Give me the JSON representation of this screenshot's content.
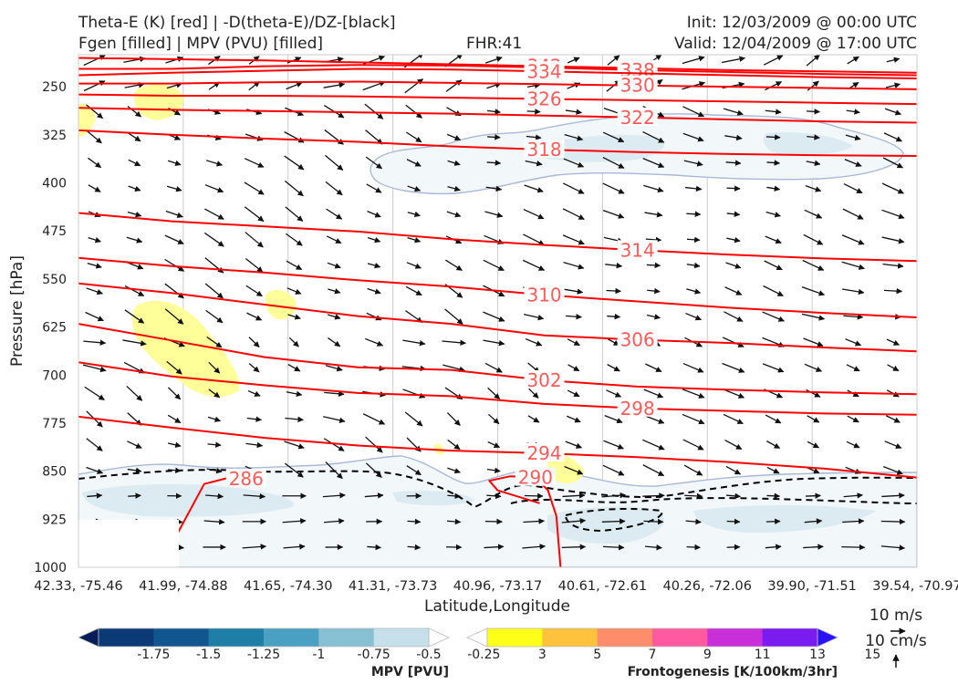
{
  "header": {
    "left_line1": "Theta-E (K) [red] | -D(theta-E)/DZ-[black]",
    "left_line2": "Fgen [filled] | MPV (PVU) [filled]",
    "fhr": "FHR:41",
    "init": "Init: 12/03/2009 @ 00:00 UTC",
    "valid": "Valid: 12/04/2009 @ 17:00 UTC"
  },
  "chart_data": {
    "type": "cross-section",
    "xlabel": "Latitude,Longitude",
    "ylabel": "Pressure [hPa]",
    "ylim": [
      1000,
      200
    ],
    "x_ticks": [
      "42.33, -75.46",
      "41.99, -74.88",
      "41.65, -74.30",
      "41.31, -73.73",
      "40.96, -73.17",
      "40.61, -72.61",
      "40.26, -72.06",
      "39.90, -71.51",
      "39.54, -70.97"
    ],
    "y_ticks": [
      250,
      325,
      400,
      475,
      550,
      625,
      700,
      775,
      850,
      925,
      1000
    ],
    "theta_e_contours": [
      {
        "level": 342,
        "y": [
          205,
          207,
          209,
          212,
          215,
          218,
          221,
          224,
          226,
          228
        ]
      },
      {
        "level": 338,
        "y": [
          222,
          222,
          218,
          216,
          217,
          220,
          224,
          227,
          230,
          232
        ]
      },
      {
        "level": 334,
        "y": [
          232,
          228,
          225,
          222,
          223,
          226,
          229,
          232,
          235,
          237
        ]
      },
      {
        "level": 330,
        "y": [
          245,
          245,
          243,
          242,
          244,
          246,
          248,
          250,
          252,
          254
        ]
      },
      {
        "level": 326,
        "y": [
          262,
          264,
          264,
          265,
          267,
          269,
          271,
          273,
          275,
          277
        ]
      },
      {
        "level": 322,
        "y": [
          283,
          286,
          288,
          290,
          292,
          295,
          298,
          301,
          304,
          306
        ]
      },
      {
        "level": 318,
        "y": [
          318,
          325,
          331,
          336,
          343,
          348,
          352,
          355,
          357,
          358
        ]
      },
      {
        "level": 314,
        "y": [
          447,
          460,
          468,
          476,
          488,
          497,
          505,
          512,
          518,
          522
        ]
      },
      {
        "level": 310,
        "y": [
          517,
          530,
          540,
          552,
          562,
          575,
          585,
          595,
          603,
          610
        ]
      },
      {
        "level": 306,
        "y": [
          557,
          572,
          590,
          608,
          620,
          638,
          645,
          650,
          657,
          663
        ]
      },
      {
        "level": 302,
        "y": [
          620,
          646,
          672,
          688,
          692,
          708,
          718,
          723,
          727,
          730
        ]
      },
      {
        "level": 298,
        "y": [
          680,
          702,
          716,
          728,
          733,
          745,
          752,
          756,
          760,
          762
        ]
      },
      {
        "level": 294,
        "y": [
          765,
          782,
          798,
          810,
          818,
          822,
          828,
          836,
          846,
          860
        ]
      },
      {
        "level": 290,
        "y": [
          900,
          880,
          865,
          858,
          860,
          880,
          920,
          1000
        ]
      },
      {
        "level": 286,
        "y": [
          950,
          870,
          860,
          862,
          868
        ]
      }
    ],
    "mpv_levels": [
      -1.75,
      -1.5,
      -1.25,
      -1.0,
      -0.75,
      -0.5,
      -0.25
    ],
    "mpv_colors": [
      "#081d58",
      "#0c3a76",
      "#10578f",
      "#1e7ea6",
      "#4aa0c2",
      "#87bfd3",
      "#c5e0ea",
      "#ffffff"
    ],
    "fgen_levels": [
      3,
      5,
      7,
      9,
      11,
      13,
      15
    ],
    "fgen_colors": [
      "#ffffff",
      "#ffff1a",
      "#ffc23c",
      "#ff8c6a",
      "#ff5aa0",
      "#c82fd8",
      "#7a1bf0",
      "#2a12ff"
    ],
    "vector_reference": [
      "10 m/s",
      "10 cm/s"
    ]
  },
  "colorbars": {
    "mpv_title": "MPV [PVU]",
    "fgen_title": "Frontogenesis [K/100km/3hr]"
  },
  "colors": {
    "theta_e": "#ff0000",
    "theta_e_label": "#ff5a5a",
    "mpv_outline": "#a9b8d6",
    "mpv_fill": "#dcebf1",
    "fgen_fill": "#ffff99",
    "vectors": "#111111"
  }
}
